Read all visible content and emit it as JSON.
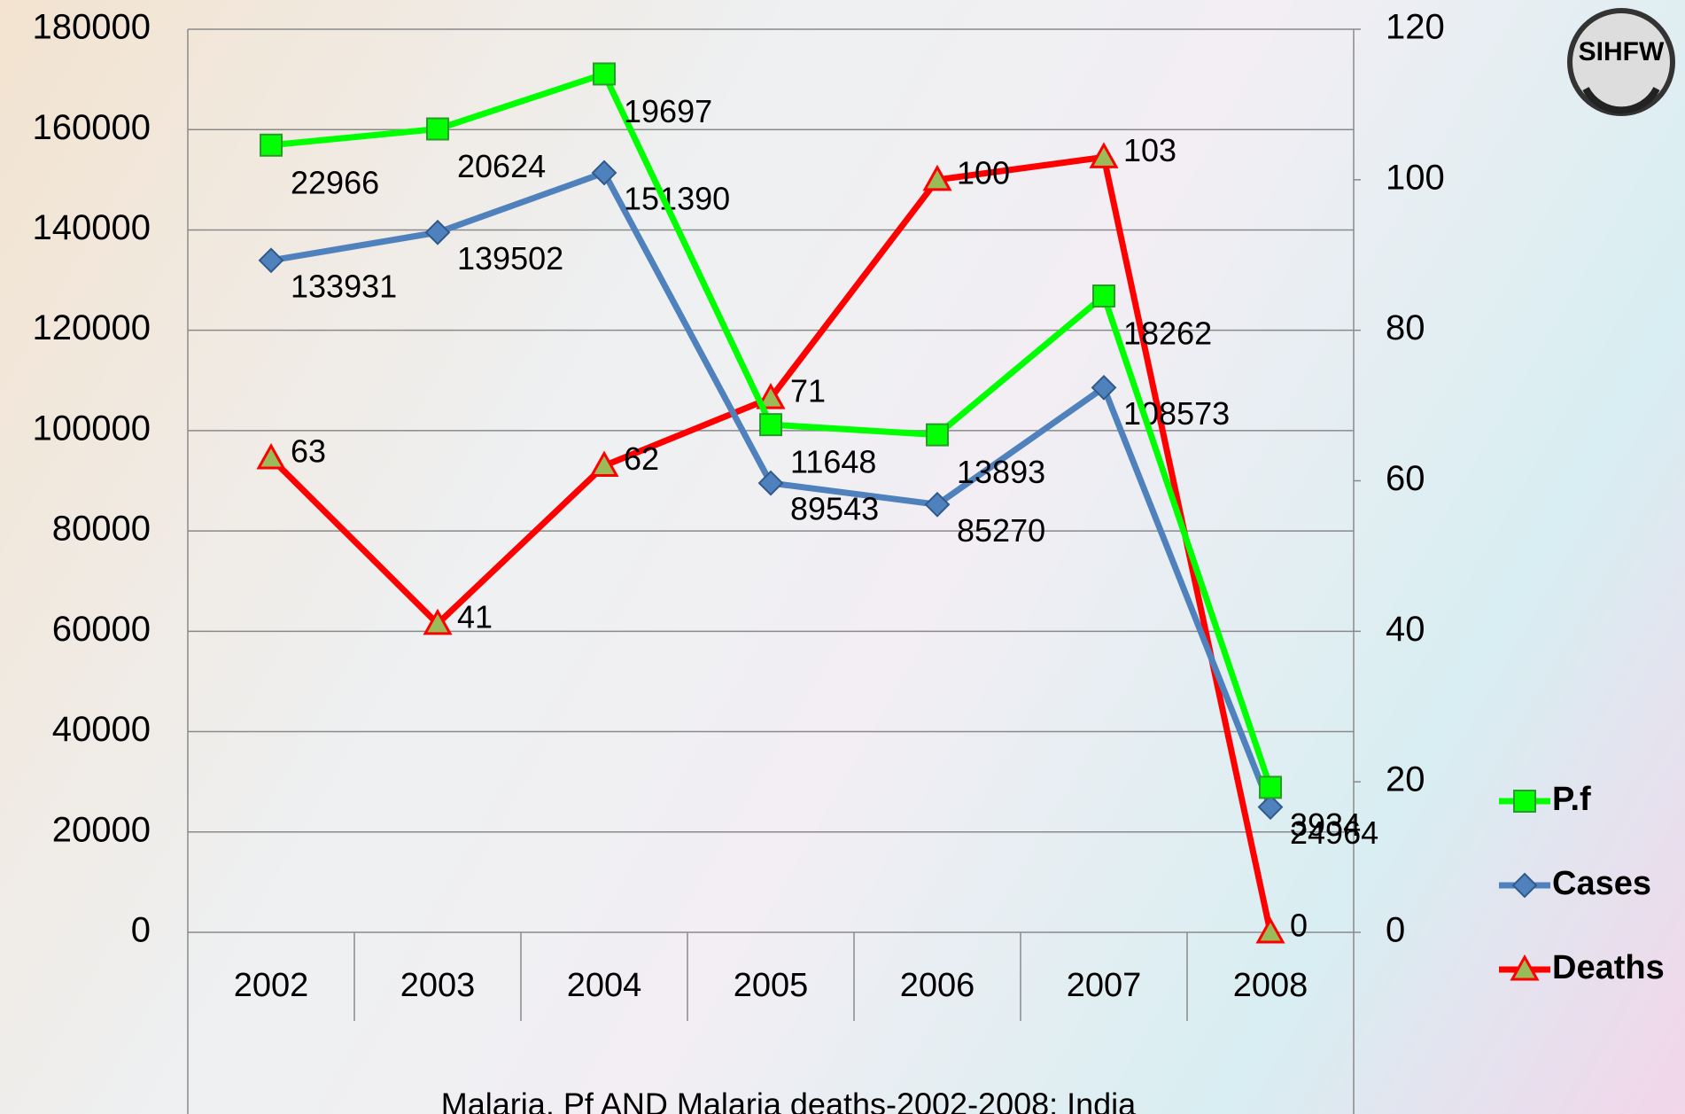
{
  "chart_data": {
    "type": "line",
    "stacked": true,
    "title": "Malaria, Pf AND Malaria deaths-2002-2008: India",
    "logo_text": "SIHFW",
    "categories": [
      "2002",
      "2003",
      "2004",
      "2005",
      "2006",
      "2007",
      "2008"
    ],
    "series": [
      {
        "name": "P.f",
        "color": "#00ff00",
        "marker": "square",
        "values": [
          22966,
          20624,
          19697,
          11648,
          13893,
          18262,
          3934
        ]
      },
      {
        "name": "Cases",
        "color": "#4f81bd",
        "marker": "diamond",
        "values": [
          133931,
          139502,
          151390,
          89543,
          85270,
          108573,
          24964
        ]
      },
      {
        "name": "Deaths",
        "color": "#ff0000",
        "marker": "triangle",
        "axis": "y2",
        "values": [
          63,
          41,
          62,
          71,
          100,
          103,
          0
        ]
      }
    ],
    "ylim": [
      0,
      180000
    ],
    "yticks": [
      0,
      20000,
      40000,
      60000,
      80000,
      100000,
      120000,
      140000,
      160000,
      180000
    ],
    "y2lim": [
      0,
      120
    ],
    "y2ticks": [
      0,
      20,
      40,
      60,
      80,
      100,
      120
    ],
    "grid": true,
    "legend": "right"
  }
}
